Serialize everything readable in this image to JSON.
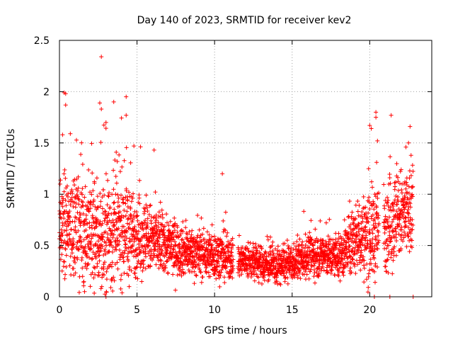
{
  "chart_data": {
    "type": "scatter",
    "title": "Day 140 of 2023, SRMTID for receiver kev2",
    "xlabel": "GPS time / hours",
    "ylabel": "SRMTID / TECUs",
    "xlim": [
      0,
      24
    ],
    "ylim": [
      0,
      2.5
    ],
    "xticks": [
      0,
      5,
      10,
      15,
      20
    ],
    "yticks": [
      0,
      0.5,
      1,
      1.5,
      2,
      2.5
    ],
    "xtick_labels": [
      "0",
      "5",
      "10",
      "15",
      "20"
    ],
    "ytick_labels": [
      "0",
      "0.5",
      "1",
      "1.5",
      "2",
      "2.5"
    ],
    "grid": true,
    "marker": "+",
    "series": [
      {
        "name": "kev2",
        "color": "#ff0000",
        "envelope": [
          {
            "t": 0.0,
            "median": 0.65,
            "spread": 0.45
          },
          {
            "t": 1.0,
            "median": 0.7,
            "spread": 0.45
          },
          {
            "t": 2.0,
            "median": 0.6,
            "spread": 0.5
          },
          {
            "t": 3.0,
            "median": 0.6,
            "spread": 0.55
          },
          {
            "t": 4.0,
            "median": 0.65,
            "spread": 0.5
          },
          {
            "t": 5.0,
            "median": 0.6,
            "spread": 0.35
          },
          {
            "t": 6.0,
            "median": 0.55,
            "spread": 0.3
          },
          {
            "t": 7.0,
            "median": 0.5,
            "spread": 0.25
          },
          {
            "t": 8.0,
            "median": 0.45,
            "spread": 0.22
          },
          {
            "t": 9.0,
            "median": 0.42,
            "spread": 0.2
          },
          {
            "t": 10.0,
            "median": 0.4,
            "spread": 0.2
          },
          {
            "t": 11.0,
            "median": 0.38,
            "spread": 0.2
          },
          {
            "t": 12.0,
            "median": 0.35,
            "spread": 0.15
          },
          {
            "t": 13.0,
            "median": 0.32,
            "spread": 0.15
          },
          {
            "t": 14.0,
            "median": 0.3,
            "spread": 0.15
          },
          {
            "t": 15.0,
            "median": 0.32,
            "spread": 0.15
          },
          {
            "t": 16.0,
            "median": 0.4,
            "spread": 0.18
          },
          {
            "t": 17.0,
            "median": 0.4,
            "spread": 0.18
          },
          {
            "t": 18.0,
            "median": 0.38,
            "spread": 0.18
          },
          {
            "t": 19.0,
            "median": 0.55,
            "spread": 0.3
          },
          {
            "t": 20.0,
            "median": 0.6,
            "spread": 0.4
          },
          {
            "t": 21.0,
            "median": 0.7,
            "spread": 0.4
          },
          {
            "t": 22.0,
            "median": 0.8,
            "spread": 0.4
          },
          {
            "t": 22.8,
            "median": 0.8,
            "spread": 0.4
          }
        ],
        "notable_points": [
          {
            "x": 2.7,
            "y": 2.34
          },
          {
            "x": 0.3,
            "y": 1.99
          },
          {
            "x": 0.4,
            "y": 1.98
          },
          {
            "x": 4.3,
            "y": 1.95
          },
          {
            "x": 3.5,
            "y": 1.9
          },
          {
            "x": 2.6,
            "y": 1.89
          },
          {
            "x": 0.4,
            "y": 1.87
          },
          {
            "x": 2.7,
            "y": 1.83
          },
          {
            "x": 20.4,
            "y": 1.8
          },
          {
            "x": 4.3,
            "y": 1.77
          },
          {
            "x": 20.4,
            "y": 1.75
          },
          {
            "x": 3.0,
            "y": 1.7
          },
          {
            "x": 20.0,
            "y": 1.67
          },
          {
            "x": 22.6,
            "y": 1.66
          },
          {
            "x": 20.1,
            "y": 1.64
          },
          {
            "x": 0.7,
            "y": 1.59
          },
          {
            "x": 0.2,
            "y": 1.58
          },
          {
            "x": 20.5,
            "y": 1.52
          },
          {
            "x": 22.5,
            "y": 1.5
          },
          {
            "x": 4.8,
            "y": 1.47
          },
          {
            "x": 6.1,
            "y": 1.43
          },
          {
            "x": 10.5,
            "y": 1.2
          },
          {
            "x": 17.0,
            "y": 0.55
          },
          {
            "x": 14.0,
            "y": 0.15
          },
          {
            "x": 3.0,
            "y": 0.0
          },
          {
            "x": 20.3,
            "y": 0.0
          },
          {
            "x": 21.3,
            "y": 0.0
          },
          {
            "x": 22.8,
            "y": 0.0
          }
        ]
      }
    ]
  }
}
